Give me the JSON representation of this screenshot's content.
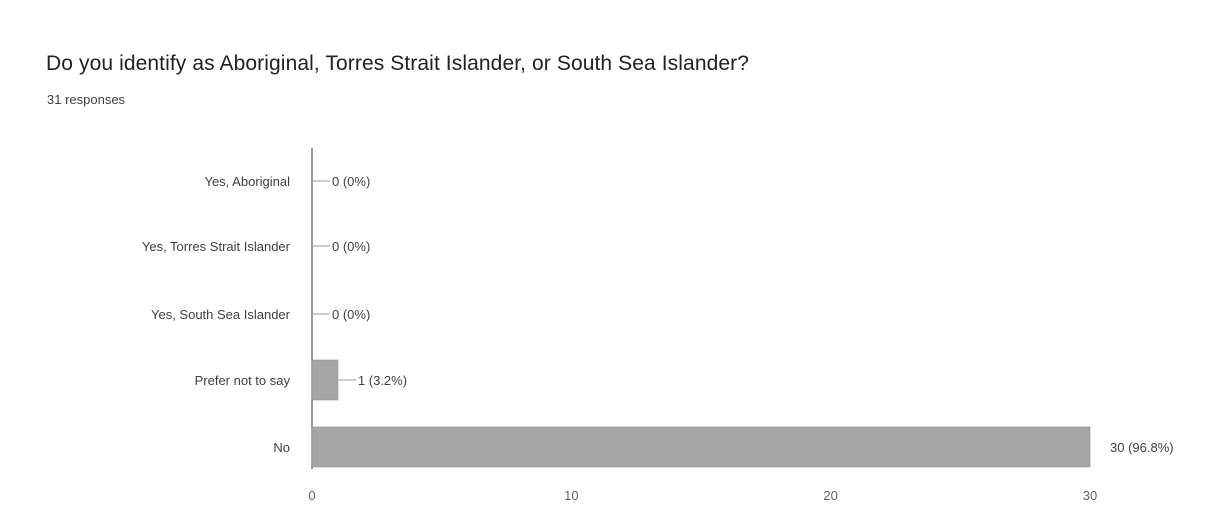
{
  "header": {
    "title": "Do you identify as Aboriginal, Torres Strait Islander, or South Sea Islander?",
    "responses": "31 responses"
  },
  "chart_data": {
    "type": "bar",
    "orientation": "horizontal",
    "categories": [
      "Yes, Aboriginal",
      "Yes, Torres Strait Islander",
      "Yes, South Sea Islander",
      "Prefer not to say",
      "No"
    ],
    "values": [
      0,
      0,
      0,
      1,
      30
    ],
    "data_labels": [
      "0 (0%)",
      "0 (0%)",
      "0 (0%)",
      "1 (3.2%)",
      "30 (96.8%)"
    ],
    "x_ticks": [
      0,
      10,
      20,
      30
    ],
    "xlim": [
      0,
      30
    ],
    "grid": false,
    "legend": "none",
    "colors": {
      "bar": "#a6a6a6",
      "axis": "#555555",
      "leader": "#9e9e9e"
    }
  }
}
